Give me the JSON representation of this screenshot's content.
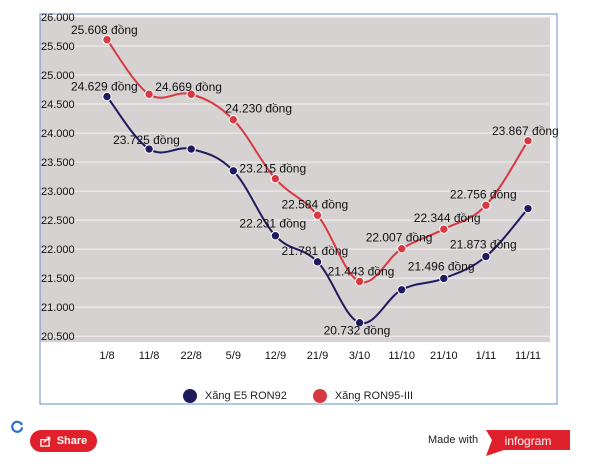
{
  "chart_data": {
    "type": "line",
    "categories": [
      "1/8",
      "11/8",
      "22/8",
      "5/9",
      "12/9",
      "21/9",
      "3/10",
      "11/10",
      "21/10",
      "1/11",
      "11/11"
    ],
    "y_ticks": [
      "26.000",
      "25.500",
      "25.000",
      "24.500",
      "24.000",
      "23.500",
      "23.000",
      "22.500",
      "22.000",
      "21.500",
      "21.000",
      "20.500"
    ],
    "ylim": [
      20.4,
      26.0
    ],
    "grid": true,
    "legend_position": "bottom",
    "series": [
      {
        "name": "Xăng E5 RON92",
        "color": "#1f1a5e",
        "values": [
          24.629,
          23.725,
          23.725,
          23.35,
          22.231,
          21.781,
          20.732,
          21.3,
          21.496,
          21.873,
          22.7
        ],
        "labels": [
          "24.629 đồng",
          "23.725 đồng",
          null,
          null,
          "22.231 đồng",
          "21.781 đồng",
          "20.732 đồng",
          null,
          "21.496 đồng",
          "21.873 đồng",
          null
        ]
      },
      {
        "name": "Xăng RON95-III",
        "color": "#d8383f",
        "values": [
          25.608,
          24.669,
          24.669,
          24.23,
          23.215,
          22.584,
          21.443,
          22.007,
          22.344,
          22.756,
          23.867
        ],
        "labels": [
          "25.608 đồng",
          null,
          "24.669 đồng",
          "24.230 đồng",
          "23.215 đồng",
          "22.584 đồng",
          "21.443 đồng",
          "22.007 đồng",
          "22.344 đồng",
          "22.756 đồng",
          "23.867 đồng"
        ]
      }
    ]
  },
  "colors": {
    "plot_background": "#d6d2d2",
    "grid": "#f4f2f2",
    "frame": "#6a8fc8",
    "share_red": "#e0202a",
    "refresh_blue": "#2c6fd1"
  },
  "footer": {
    "share_label": "Share",
    "made_with_label": "Made with",
    "brand": "infogram"
  }
}
